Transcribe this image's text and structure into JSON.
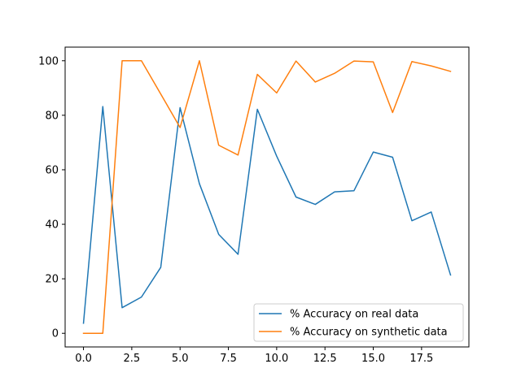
{
  "chart_data": {
    "type": "line",
    "title": "",
    "xlabel": "",
    "ylabel": "",
    "xlim": [
      -0.95,
      19.95
    ],
    "ylim": [
      -5,
      105
    ],
    "xticks": [
      0,
      2.5,
      5,
      7.5,
      10,
      12.5,
      15,
      17.5
    ],
    "xtick_labels": [
      "0.0",
      "2.5",
      "5.0",
      "7.5",
      "10.0",
      "12.5",
      "15.0",
      "17.5"
    ],
    "yticks": [
      0,
      20,
      40,
      60,
      80,
      100
    ],
    "ytick_labels": [
      "0",
      "20",
      "40",
      "60",
      "80",
      "100"
    ],
    "grid": false,
    "legend_position": "lower-right",
    "x": [
      0,
      1,
      2,
      3,
      4,
      5,
      6,
      7,
      8,
      9,
      10,
      11,
      12,
      13,
      14,
      15,
      16,
      17,
      18,
      19
    ],
    "series": [
      {
        "name": "% Accuracy on real data",
        "color": "#1f77b4",
        "values": [
          3.7,
          83.2,
          9.4,
          13.3,
          24.2,
          82.8,
          54.9,
          36.3,
          29.0,
          82.2,
          65.0,
          50.0,
          47.3,
          51.9,
          52.3,
          66.5,
          64.6,
          41.3,
          44.5,
          21.4
        ]
      },
      {
        "name": "% Accuracy on synthetic data",
        "color": "#ff7f0e",
        "values": [
          0,
          0,
          100,
          100,
          87.8,
          75.5,
          100,
          69.0,
          65.4,
          95.0,
          88.2,
          99.9,
          92.2,
          95.4,
          99.9,
          99.6,
          81.0,
          99.7,
          98.1,
          96.1
        ]
      }
    ]
  }
}
